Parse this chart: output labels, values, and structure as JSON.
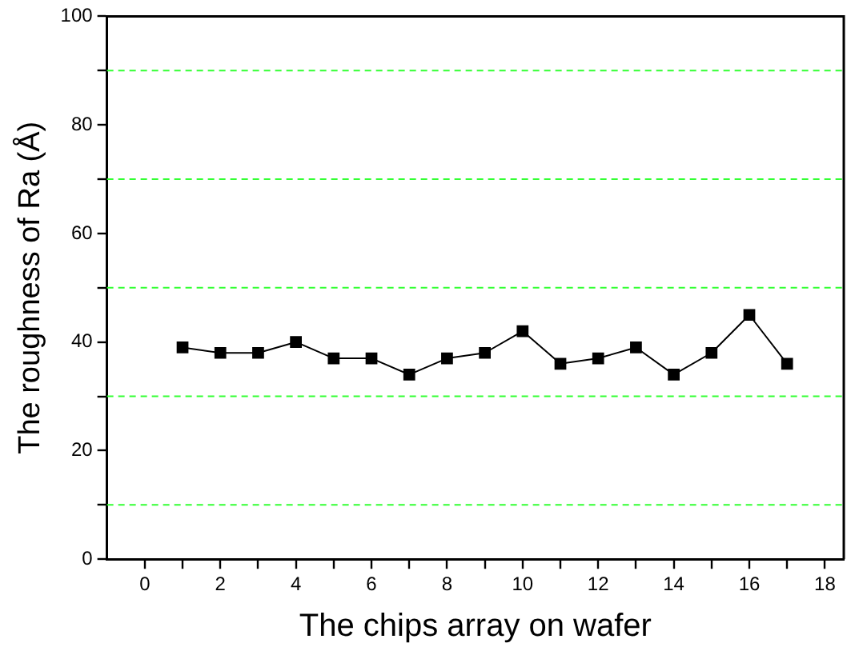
{
  "chart_data": {
    "type": "line",
    "xlabel": "The chips array on wafer",
    "ylabel": "The roughness of Ra (Å)",
    "x": [
      1,
      2,
      3,
      4,
      5,
      6,
      7,
      8,
      9,
      10,
      11,
      12,
      13,
      14,
      15,
      16,
      17
    ],
    "series": [
      {
        "color": "#000000",
        "values": [
          39,
          38,
          38,
          40,
          37,
          37,
          34,
          37,
          38,
          42,
          36,
          37,
          39,
          34,
          38,
          45,
          36
        ]
      }
    ],
    "xlim": [
      -1,
      18.5
    ],
    "xticks": [
      0,
      {
        "value": 1,
        "label": null
      },
      2,
      {
        "value": 3,
        "label": null
      },
      4,
      {
        "value": 5,
        "label": null
      },
      6,
      {
        "value": 7,
        "label": null
      },
      8,
      {
        "value": 9,
        "label": null
      },
      10,
      {
        "value": 11,
        "label": null
      },
      12,
      {
        "value": 13,
        "label": null
      },
      14,
      {
        "value": 15,
        "label": null
      },
      16,
      {
        "value": 17,
        "label": null
      },
      18
    ],
    "ylim": [
      0,
      100
    ],
    "yticks": [
      0,
      {
        "value": 10,
        "label": null
      },
      20,
      {
        "value": 30,
        "label": null
      },
      40,
      {
        "value": 50,
        "label": null
      },
      60,
      {
        "value": 70,
        "label": null
      },
      80,
      {
        "value": 90,
        "label": null
      },
      100
    ],
    "ref_lines": [
      {
        "axis": "y",
        "value": 10,
        "color": "#33ff33",
        "line_style": "dashed"
      },
      {
        "axis": "y",
        "value": 30,
        "color": "#33ff33",
        "line_style": "dashed"
      },
      {
        "axis": "y",
        "value": 50,
        "color": "#33ff33",
        "line_style": "dashed"
      },
      {
        "axis": "y",
        "value": 70,
        "color": "#33ff33",
        "line_style": "dashed"
      },
      {
        "axis": "y",
        "value": 90,
        "color": "#33ff33",
        "line_style": "dashed"
      }
    ],
    "grid": false,
    "legend": false,
    "marker": "square",
    "line_style": "solid"
  }
}
